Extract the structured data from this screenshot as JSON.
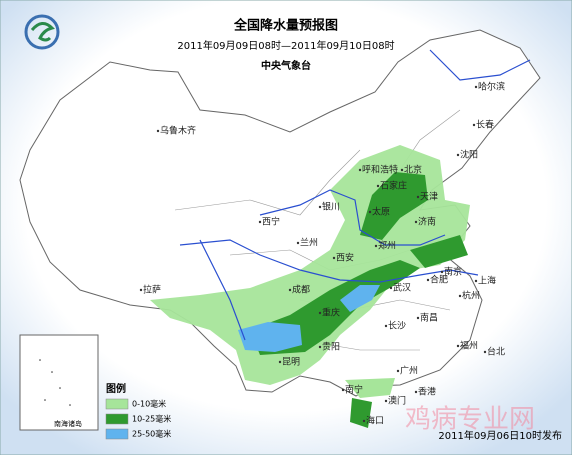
{
  "header": {
    "title": "全国降水量预报图",
    "subtitle": "2011年09月09日08时—2011年09月10日08时",
    "issuer": "中央气象台"
  },
  "cities": [
    "乌鲁木齐",
    "哈尔滨",
    "长春",
    "沈阳",
    "呼和浩特",
    "北京",
    "天津",
    "石家庄",
    "太原",
    "银川",
    "西宁",
    "兰州",
    "济南",
    "郑州",
    "西安",
    "拉萨",
    "成都",
    "重庆",
    "武汉",
    "合肥",
    "南京",
    "上海",
    "杭州",
    "长沙",
    "南昌",
    "贵阳",
    "昆明",
    "福州",
    "台北",
    "广州",
    "南宁",
    "澳门",
    "香港",
    "海口"
  ],
  "legend": {
    "title": "图例",
    "items": [
      {
        "label": "0-10毫米",
        "color": "#a6e59a"
      },
      {
        "label": "10-25毫米",
        "color": "#2f9a2f"
      },
      {
        "label": "25-50毫米",
        "color": "#5fb3ee"
      }
    ]
  },
  "inset": {
    "label": "南海诸岛"
  },
  "issue_time": "2011年09月06日10时发布",
  "watermark": "鸡病专业网"
}
